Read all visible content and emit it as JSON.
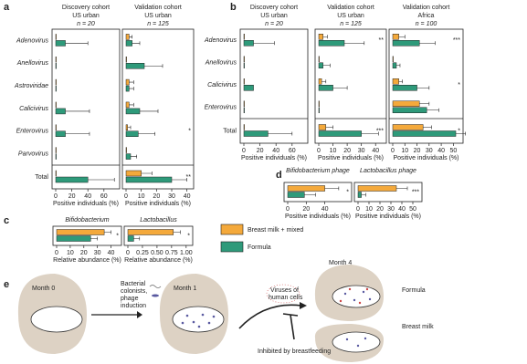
{
  "panel_labels": [
    "a",
    "b",
    "c",
    "d",
    "e"
  ],
  "legend": [
    {
      "name": "Breast milk + mixed",
      "color": "#f4a93b"
    },
    {
      "name": "Formula",
      "color": "#2e9a7a"
    }
  ],
  "chart_data": [
    {
      "type": "hbar",
      "panel": "a",
      "title": "Discovery cohort",
      "subtitle": "US urban",
      "n": "n = 20",
      "categories": [
        "Adenovirus",
        "Anellovirus",
        "Astroviridae",
        "Calicivirus",
        "Enterovirus",
        "Parvovirus",
        "Total"
      ],
      "series": [
        {
          "color": "#f4a93b",
          "values": [
            0,
            0,
            0,
            0,
            0,
            0,
            0
          ],
          "errors": [
            0,
            0,
            0,
            0,
            0,
            0,
            0
          ]
        },
        {
          "color": "#2e9a7a",
          "values": [
            12,
            0,
            0,
            12,
            12,
            0,
            40
          ],
          "errors": [
            28,
            0,
            0,
            30,
            30,
            0,
            33
          ]
        }
      ],
      "annotations": [
        null,
        null,
        null,
        null,
        null,
        null,
        null
      ],
      "xlim": [
        0,
        75
      ],
      "xticks": [
        0,
        20,
        40,
        60
      ],
      "xlabel": "Positive individuals (%)"
    },
    {
      "type": "hbar",
      "panel": "a",
      "title": "Validation cohort",
      "subtitle": "US urban",
      "n": "n = 125",
      "series": [
        {
          "color": "#f4a93b",
          "values": [
            2,
            0,
            2,
            2,
            1,
            0,
            10
          ],
          "errors": [
            2,
            0,
            3,
            3,
            2,
            0,
            7
          ]
        },
        {
          "color": "#2e9a7a",
          "values": [
            4,
            12,
            2,
            9,
            8,
            3,
            30
          ],
          "errors": [
            5,
            12,
            3,
            12,
            11,
            4,
            10
          ]
        }
      ],
      "annotations": [
        null,
        null,
        null,
        null,
        "*",
        null,
        "**"
      ],
      "xlim": [
        0,
        42
      ],
      "xticks": [
        0,
        10,
        20,
        30,
        40
      ],
      "xlabel": "Positive individuals (%)"
    },
    {
      "type": "hbar",
      "panel": "b",
      "title": "Discovery cohort",
      "subtitle": "US urban",
      "n": "n = 20",
      "categories": [
        "Adenovirus",
        "Anellovirus",
        "Calicivirus",
        "Enterovirus",
        "Total"
      ],
      "series": [
        {
          "color": "#f4a93b",
          "values": [
            0,
            0,
            0,
            0,
            0
          ],
          "errors": [
            0,
            0,
            0,
            0,
            0
          ]
        },
        {
          "color": "#2e9a7a",
          "values": [
            12,
            0,
            12,
            0,
            30
          ],
          "errors": [
            26,
            0,
            0,
            0,
            30
          ]
        }
      ],
      "annotations": [
        null,
        null,
        null,
        null,
        null
      ],
      "xlim": [
        0,
        75
      ],
      "xticks": [
        0,
        20,
        40,
        60
      ],
      "xlabel": "Positive individuals (%)"
    },
    {
      "type": "hbar",
      "panel": "b",
      "title": "Validation cohort",
      "subtitle": "US urban",
      "n": "n = 125",
      "series": [
        {
          "color": "#f4a93b",
          "values": [
            3,
            0,
            2,
            0,
            5
          ],
          "errors": [
            3,
            0,
            3,
            0,
            5
          ]
        },
        {
          "color": "#2e9a7a",
          "values": [
            18,
            3,
            10,
            0,
            30
          ],
          "errors": [
            14,
            5,
            10,
            0,
            12
          ]
        }
      ],
      "annotations": [
        "**",
        null,
        null,
        null,
        "***"
      ],
      "xlim": [
        0,
        45
      ],
      "xticks": [
        0,
        10,
        20,
        30,
        40
      ],
      "xlabel": "Positive individuals (%)"
    },
    {
      "type": "hbar",
      "panel": "b",
      "title": "Validation cohort",
      "subtitle": "Africa",
      "n": "n = 100",
      "series": [
        {
          "color": "#f4a93b",
          "values": [
            5,
            0,
            5,
            22,
            25
          ],
          "errors": [
            5,
            0,
            3,
            8,
            7
          ]
        },
        {
          "color": "#2e9a7a",
          "values": [
            22,
            3,
            20,
            28,
            52
          ],
          "errors": [
            13,
            3,
            10,
            10,
            8
          ]
        }
      ],
      "annotations": [
        "***",
        null,
        "*",
        null,
        "*"
      ],
      "xlim": [
        0,
        55
      ],
      "xticks": [
        0,
        10,
        20,
        30,
        40,
        50
      ],
      "xlabel": "Positive individuals (%)"
    },
    {
      "type": "hbar",
      "panel": "c",
      "title": "Bifidobacterium",
      "series": [
        {
          "color": "#f4a93b",
          "values": [
            35
          ],
          "errors": [
            5
          ]
        },
        {
          "color": "#2e9a7a",
          "values": [
            25
          ],
          "errors": [
            5
          ]
        }
      ],
      "annotations": [
        "*"
      ],
      "xlim": [
        0,
        45
      ],
      "xticks": [
        0,
        10,
        20,
        30,
        40
      ],
      "xlabel": "Relative abundance (%)"
    },
    {
      "type": "hbar",
      "panel": "c",
      "title": "Lactobacillus",
      "series": [
        {
          "color": "#f4a93b",
          "values": [
            0.78
          ],
          "errors": [
            0.12
          ]
        },
        {
          "color": "#2e9a7a",
          "values": [
            0.1
          ],
          "errors": [
            0.1
          ]
        }
      ],
      "annotations": [
        "*"
      ],
      "xlim": [
        0,
        1.05
      ],
      "xticks": [
        0,
        0.25,
        {
          "value": 0.5,
          "label": "0.50"
        },
        0.75,
        {
          "value": 1,
          "label": "1.00"
        }
      ],
      "xlabel": "Relative abundance (%)"
    },
    {
      "type": "hbar",
      "panel": "d",
      "title": "Bifidobacterium phage",
      "series": [
        {
          "color": "#f4a93b",
          "values": [
            40
          ],
          "errors": [
            15
          ]
        },
        {
          "color": "#2e9a7a",
          "values": [
            18
          ],
          "errors": [
            12
          ]
        }
      ],
      "annotations": [
        "*"
      ],
      "xlim": [
        0,
        65
      ],
      "xticks": [
        0,
        20,
        40
      ],
      "xlabel": "Positive individuals (%)"
    },
    {
      "type": "hbar",
      "panel": "d",
      "title": "Lactobacillus phage",
      "series": [
        {
          "color": "#f4a93b",
          "values": [
            35
          ],
          "errors": [
            10
          ]
        },
        {
          "color": "#2e9a7a",
          "values": [
            3
          ],
          "errors": [
            4
          ]
        }
      ],
      "annotations": [
        "***"
      ],
      "xlim": [
        0,
        55
      ],
      "xticks": [
        0,
        10,
        20,
        30,
        40,
        50
      ],
      "xlabel": "Positive individuals (%)"
    }
  ],
  "diagram": {
    "month0": "Month 0",
    "bacterial": [
      "Bacterial",
      "colonists,",
      "phage",
      "induction"
    ],
    "month1": "Month 1",
    "viruses": [
      "Viruses of",
      "human cells"
    ],
    "inhibited": "Inhibited by breastfeeding",
    "month4": "Month 4",
    "formula": "Formula",
    "breast_milk": "Breast milk"
  }
}
